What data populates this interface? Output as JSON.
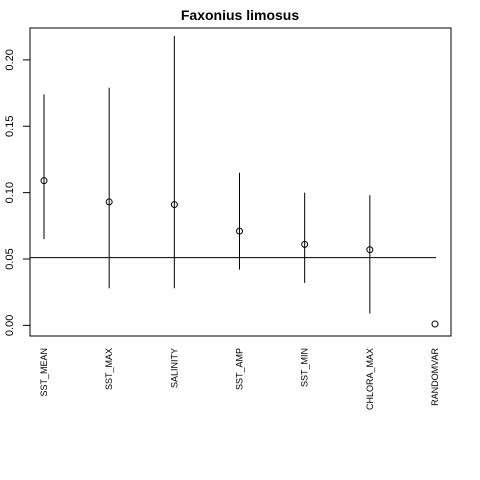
{
  "chart_data": {
    "type": "scatter",
    "title": "Faxonius limosus",
    "xlabel": "",
    "ylabel": "",
    "categories": [
      "SST_MEAN",
      "SST_MAX",
      "SALINITY",
      "SST_AMP",
      "SST_MIN",
      "CHLORA_MAX",
      "RANDOMVAR"
    ],
    "values": [
      0.109,
      0.093,
      0.091,
      0.071,
      0.061,
      0.057,
      0.001
    ],
    "lower": [
      0.065,
      0.028,
      0.028,
      0.042,
      0.032,
      0.009,
      null
    ],
    "upper": [
      0.174,
      0.179,
      0.218,
      0.115,
      0.1,
      0.098,
      null
    ],
    "reference_line": 0.051,
    "ylim": [
      -0.008,
      0.224
    ],
    "yticks": [
      "0.00",
      "0.05",
      "0.10",
      "0.15",
      "0.20"
    ],
    "grid": false,
    "colors": {
      "ink": "#000000",
      "background": "#ffffff"
    }
  }
}
